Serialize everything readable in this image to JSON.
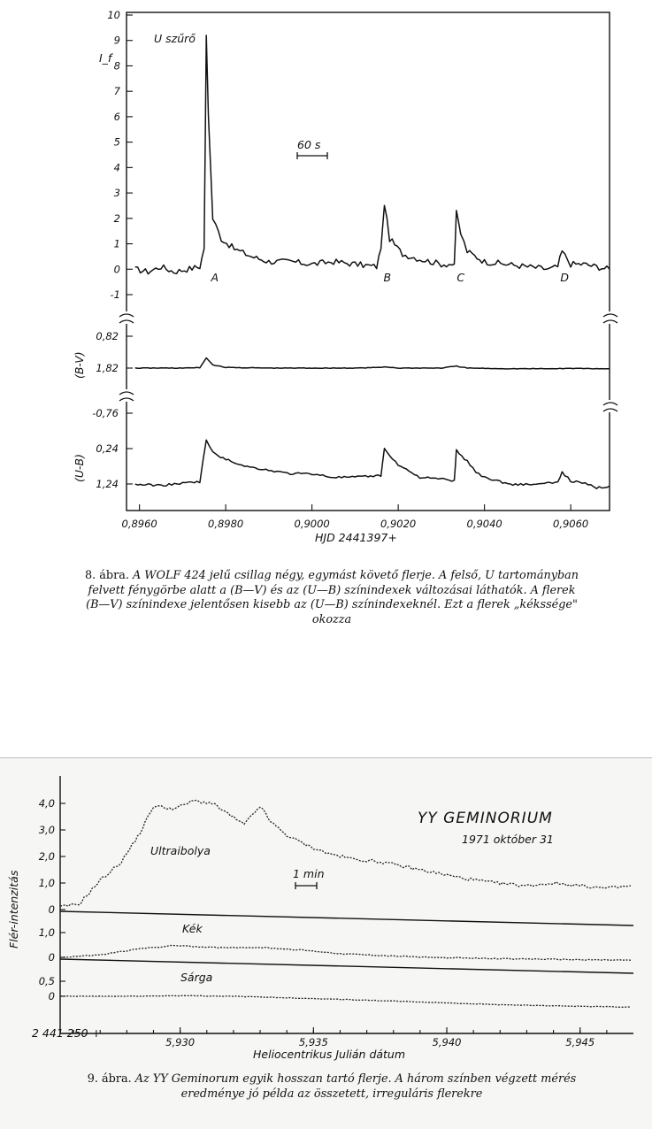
{
  "chart_data": [
    {
      "type": "line",
      "panels": [
        {
          "ylabel": "I_f",
          "annotation": "U szűrő",
          "yticks": [
            "10",
            "9",
            "8",
            "7",
            "6",
            "5",
            "4",
            "3",
            "2",
            "1",
            "0",
            "-1"
          ],
          "ylim": [
            -1.5,
            10
          ],
          "series": [
            {
              "x": [
                0.8959,
                0.8962,
                0.8965,
                0.8968,
                0.8971,
                0.8974,
                0.8975,
                0.89755,
                0.8976,
                0.8977,
                0.8979,
                0.8982,
                0.8986,
                0.899,
                0.8995,
                0.9,
                0.9005,
                0.901,
                0.9015,
                0.9016,
                0.90168,
                0.9018,
                0.9021,
                0.9025,
                0.903,
                0.9033,
                0.90335,
                0.90345,
                0.9036,
                0.904,
                0.9045,
                0.905,
                0.9055,
                0.9057,
                0.9058,
                0.906,
                0.9063,
                0.9066,
                0.9069
              ],
              "y": [
                0.0,
                -0.1,
                0.1,
                -0.1,
                0.0,
                0.1,
                0.8,
                9.2,
                6.0,
                2.0,
                1.2,
                0.8,
                0.5,
                0.3,
                0.3,
                0.2,
                0.3,
                0.2,
                0.1,
                0.8,
                2.6,
                1.2,
                0.6,
                0.4,
                0.2,
                0.2,
                2.2,
                1.4,
                0.7,
                0.3,
                0.2,
                0.1,
                0.0,
                0.1,
                0.7,
                0.2,
                0.2,
                0.1,
                0.0
              ]
            }
          ],
          "point_labels": [
            {
              "x": 0.8977,
              "text": "A"
            },
            {
              "x": 0.9017,
              "text": "B"
            },
            {
              "x": 0.9034,
              "text": "C"
            },
            {
              "x": 0.9058,
              "text": "D"
            }
          ]
        },
        {
          "ylabel": "(B-V)",
          "yticks": [
            "0,82",
            "1,82"
          ],
          "ylim": [
            1.82,
            0.82
          ],
          "series": [
            {
              "x": [
                0.8959,
                0.8965,
                0.897,
                0.8974,
                0.89755,
                0.8977,
                0.898,
                0.899,
                0.9,
                0.901,
                0.9016,
                0.90168,
                0.902,
                0.903,
                0.90335,
                0.9036,
                0.9045,
                0.9055,
                0.906,
                0.9069
              ],
              "y": [
                1.82,
                1.82,
                1.82,
                1.81,
                1.5,
                1.72,
                1.8,
                1.82,
                1.82,
                1.82,
                1.8,
                1.78,
                1.82,
                1.82,
                1.76,
                1.82,
                1.84,
                1.84,
                1.83,
                1.84
              ]
            }
          ]
        },
        {
          "ylabel": "(U-B)",
          "yticks": [
            "-0,76",
            "0,24",
            "1,24"
          ],
          "ylim": [
            1.4,
            -0.76
          ],
          "series": [
            {
              "x": [
                0.8959,
                0.8965,
                0.897,
                0.8974,
                0.89755,
                0.8977,
                0.898,
                0.8985,
                0.899,
                0.8995,
                0.9,
                0.9005,
                0.901,
                0.9016,
                0.90168,
                0.902,
                0.9025,
                0.903,
                0.9033,
                0.90335,
                0.9036,
                0.9038,
                0.904,
                0.9046,
                0.9052,
                0.9057,
                0.9058,
                0.906,
                0.9064,
                0.9066,
                0.9069
              ],
              "y": [
                1.25,
                1.28,
                1.22,
                1.18,
                0.0,
                0.35,
                0.55,
                0.75,
                0.85,
                0.95,
                0.95,
                1.05,
                1.05,
                1.0,
                0.25,
                0.7,
                1.05,
                1.1,
                1.15,
                0.3,
                0.6,
                0.9,
                1.05,
                1.25,
                1.25,
                1.2,
                0.9,
                1.15,
                1.25,
                1.35,
                1.3
              ]
            }
          ]
        }
      ],
      "xticks": [
        "0,8960",
        "0,8980",
        "0,9000",
        "0,9020",
        "0,9040",
        "0,9060"
      ],
      "xtick_values": [
        0.896,
        0.898,
        0.9,
        0.902,
        0.904,
        0.906
      ],
      "xlim": [
        0.8957,
        0.9069
      ],
      "xlabel": "HJD 2441397+",
      "scale_bar": "60 s"
    },
    {
      "type": "line",
      "title": "YY GEMINORIUM",
      "date": "1971 október 31",
      "ylabel": "Flér-intenzitás",
      "xlabel": "Heliocentrikus Julián dátum",
      "x_offset_label": "2 441 250 +",
      "xticks": [
        "5,930",
        "5,935",
        "5,940",
        "5,945"
      ],
      "xtick_values": [
        5.93,
        5.935,
        5.94,
        5.945
      ],
      "xlim": [
        5.9255,
        5.947
      ],
      "scale_bar": "1 min",
      "panels": [
        {
          "name": "Ultraibolya",
          "yticks": [
            "4,0",
            "3,0",
            "2,0",
            "1,0",
            "0"
          ],
          "ylim": [
            -0.1,
            4.4
          ],
          "x": [
            5.9255,
            5.9262,
            5.927,
            5.9278,
            5.9285,
            5.929,
            5.9298,
            5.9305,
            5.9312,
            5.9318,
            5.9324,
            5.933,
            5.9334,
            5.934,
            5.9348,
            5.9356,
            5.9365,
            5.9375,
            5.9385,
            5.9395,
            5.9405,
            5.9418,
            5.943,
            5.944,
            5.945,
            5.946,
            5.947
          ],
          "y": [
            0.1,
            0.2,
            1.1,
            1.8,
            2.9,
            3.9,
            3.8,
            4.1,
            4.0,
            3.6,
            3.2,
            3.9,
            3.3,
            2.8,
            2.4,
            2.1,
            1.9,
            1.8,
            1.6,
            1.4,
            1.2,
            1.0,
            0.9,
            1.0,
            0.9,
            0.8,
            0.9
          ]
        },
        {
          "name": "Kék",
          "yticks": [
            "1,0",
            "0"
          ],
          "ylim": [
            -0.2,
            1.2
          ],
          "x": [
            5.9255,
            5.927,
            5.9285,
            5.9298,
            5.9312,
            5.933,
            5.9345,
            5.936,
            5.938,
            5.94,
            5.942,
            5.944,
            5.947
          ],
          "y": [
            0.0,
            0.1,
            0.35,
            0.48,
            0.4,
            0.4,
            0.3,
            0.15,
            0.05,
            -0.02,
            -0.05,
            -0.08,
            -0.12
          ]
        },
        {
          "name": "Sárga",
          "yticks": [
            "0,5",
            "0"
          ],
          "ylim": [
            -0.6,
            0.6
          ],
          "x": [
            5.9255,
            5.928,
            5.93,
            5.932,
            5.934,
            5.936,
            5.938,
            5.94,
            5.942,
            5.944,
            5.947
          ],
          "y": [
            0.0,
            0.0,
            0.02,
            0.0,
            -0.05,
            -0.1,
            -0.16,
            -0.22,
            -0.28,
            -0.32,
            -0.36
          ]
        }
      ]
    }
  ],
  "captions": {
    "fig8": {
      "num": "8. ábra.",
      "l1": "A WOLF 424 jelű csillag négy, egymást követő flerje. A felső, U tartományban",
      "l2": "felvett fénygörbe alatt a (B—V) és az (U—B) színindexek változásai láthatók. A flerek",
      "l3": "(B—V) színindexe jelentősen kisebb az (U—B) színindexeknél. Ezt a flerek „kékssége\"",
      "l4": "okozza"
    },
    "fig9": {
      "num": "9. ábra.",
      "l1": "Az YY Geminorum egyik hosszan tartó flerje. A három színben végzett mérés",
      "l2": "eredménye jó példa az összetett, irreguláris flerekre"
    }
  }
}
